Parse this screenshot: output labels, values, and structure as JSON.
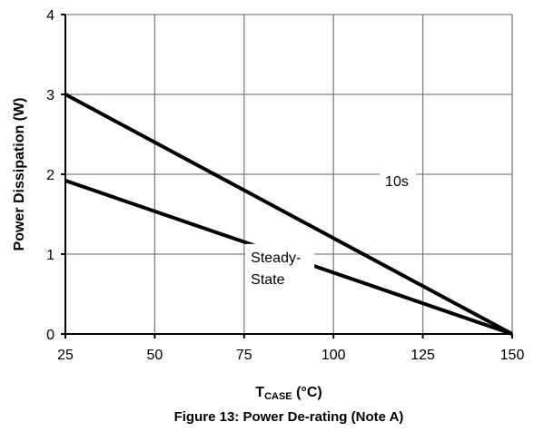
{
  "chart_data": {
    "type": "line",
    "title": "",
    "caption": "Figure 13: Power De-rating (Note A)",
    "xlabel": {
      "main": "T",
      "sub": "CASE",
      "unit": " (°C)"
    },
    "ylabel": "Power Dissipation (W)",
    "xlim": [
      25,
      150
    ],
    "ylim": [
      0,
      4
    ],
    "xticks": [
      "25",
      "50",
      "75",
      "100",
      "125",
      "150"
    ],
    "yticks": [
      "0",
      "1",
      "2",
      "3",
      "4"
    ],
    "grid": true,
    "legend": "none",
    "series": [
      {
        "name": "10s",
        "x": [
          25,
          150
        ],
        "y": [
          3.0,
          0
        ]
      },
      {
        "name": "Steady-State",
        "x": [
          25,
          150
        ],
        "y": [
          1.92,
          0
        ]
      }
    ],
    "annotations": [
      {
        "series": "10s",
        "lines": [
          "10s"
        ],
        "x": 118,
        "y": 1.85
      },
      {
        "series": "Steady-State",
        "lines": [
          "Steady-",
          "State"
        ],
        "x": 85,
        "y": 0.9
      }
    ],
    "colors": {
      "line": "#000000",
      "grid": "#808080",
      "axis": "#000000"
    }
  }
}
